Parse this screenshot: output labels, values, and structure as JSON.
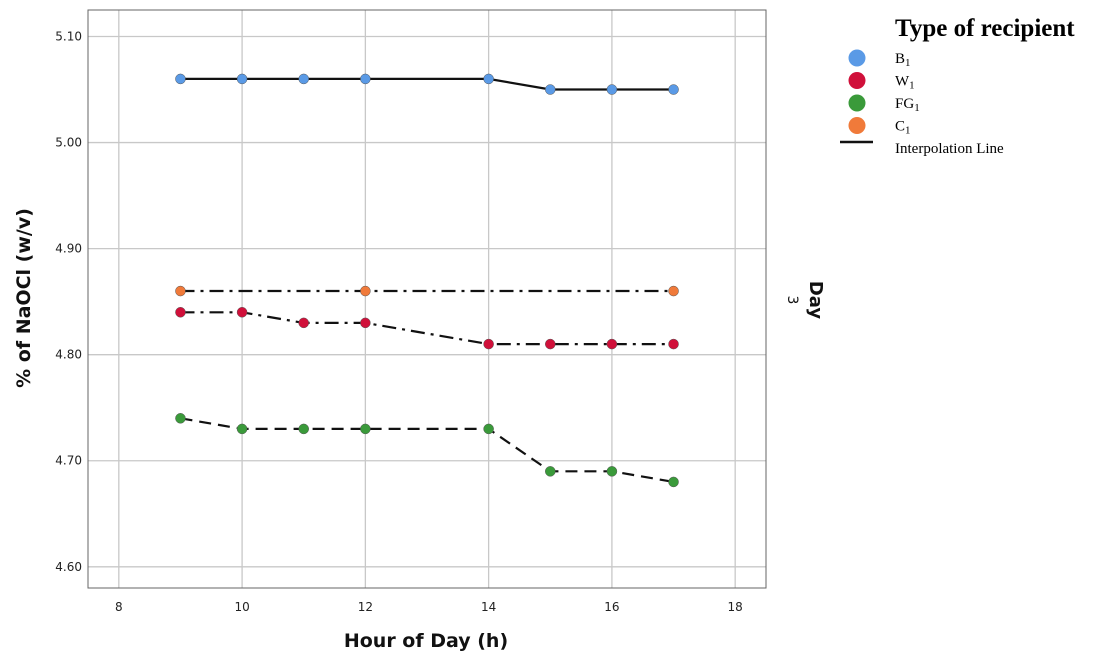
{
  "chart_data": {
    "type": "line",
    "xlabel": "Hour of Day (h)",
    "ylabel": "% of NaOCl (w/v)",
    "xlim": [
      7.5,
      18.5
    ],
    "ylim": [
      4.58,
      5.125
    ],
    "xticks": [
      8,
      10,
      12,
      14,
      16,
      18
    ],
    "yticks": [
      4.6,
      4.7,
      4.8,
      4.9,
      5.0,
      5.1
    ],
    "xtick_labels": [
      "8",
      "10",
      "12",
      "14",
      "16",
      "18"
    ],
    "ytick_labels": [
      "4.60",
      "4.70",
      "4.80",
      "4.90",
      "5.00",
      "5.10"
    ],
    "grid": true,
    "facet_label": "Day",
    "facet_value": "3",
    "legend_title": "Type of recipient",
    "legend_position": "top-right",
    "interpolation_label": "Interpolation Line",
    "series": [
      {
        "name": "B",
        "subscript": "1",
        "color": "#5a9ae6",
        "line_style": "solid",
        "x": [
          9,
          10,
          11,
          12,
          14,
          15,
          16,
          17
        ],
        "y": [
          5.06,
          5.06,
          5.06,
          5.06,
          5.06,
          5.05,
          5.05,
          5.05
        ]
      },
      {
        "name": "W",
        "subscript": "1",
        "color": "#d0103a",
        "line_style": "dashdot",
        "x": [
          9,
          10,
          11,
          12,
          14,
          15,
          16,
          17
        ],
        "y": [
          4.84,
          4.84,
          4.83,
          4.83,
          4.81,
          4.81,
          4.81,
          4.81
        ]
      },
      {
        "name": "FG",
        "subscript": "1",
        "color": "#3a9a3a",
        "line_style": "dashed",
        "x": [
          9,
          10,
          11,
          12,
          14,
          15,
          16,
          17
        ],
        "y": [
          4.74,
          4.73,
          4.73,
          4.73,
          4.73,
          4.69,
          4.69,
          4.68
        ]
      },
      {
        "name": "C",
        "subscript": "1",
        "color": "#f07a3a",
        "line_style": "dashdot",
        "x": [
          9,
          12,
          17
        ],
        "y": [
          4.86,
          4.86,
          4.86
        ]
      }
    ]
  }
}
